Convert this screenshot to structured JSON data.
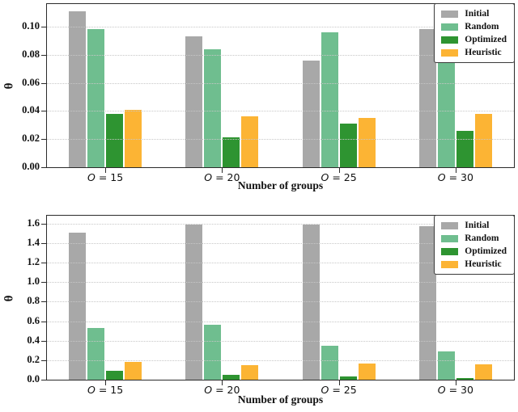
{
  "figure_colors": {
    "initial": "#a8a8a8",
    "random": "#6fbe8f",
    "optimized": "#2e9431",
    "heuristic": "#fcb434",
    "spine": "#2b2b2b",
    "gridline": "#c7c7c7"
  },
  "chart_data": [
    {
      "type": "bar",
      "title": "",
      "xlabel": "Number of groups",
      "ylabel": "θ",
      "categories": [
        "O = 15",
        "O = 20",
        "O = 25",
        "O = 30"
      ],
      "ylim": [
        0,
        0.116
      ],
      "grid": true,
      "legend_position": "upper right",
      "yticks": [
        {
          "value": 0.0,
          "label": "0.00"
        },
        {
          "value": 0.02,
          "label": "0.02"
        },
        {
          "value": 0.04,
          "label": "0.04"
        },
        {
          "value": 0.06,
          "label": "0.06"
        },
        {
          "value": 0.08,
          "label": "0.08"
        },
        {
          "value": 0.1,
          "label": "0.10"
        }
      ],
      "series": [
        {
          "name": "Initial",
          "color": "#a8a8a8",
          "values": [
            0.111,
            0.093,
            0.076,
            0.098
          ]
        },
        {
          "name": "Random",
          "color": "#6fbe8f",
          "values": [
            0.098,
            0.084,
            0.096,
            0.079
          ]
        },
        {
          "name": "Optimized",
          "color": "#2e9431",
          "values": [
            0.038,
            0.021,
            0.031,
            0.026
          ]
        },
        {
          "name": "Heuristic",
          "color": "#fcb434",
          "values": [
            0.041,
            0.036,
            0.035,
            0.038
          ]
        }
      ]
    },
    {
      "type": "bar",
      "title": "",
      "xlabel": "Number of groups",
      "ylabel": "θ",
      "categories": [
        "O = 15",
        "O = 20",
        "O = 25",
        "O = 30"
      ],
      "ylim": [
        0,
        1.68
      ],
      "grid": true,
      "legend_position": "upper right",
      "yticks": [
        {
          "value": 0.0,
          "label": "0.0"
        },
        {
          "value": 0.2,
          "label": "0.2"
        },
        {
          "value": 0.4,
          "label": "0.4"
        },
        {
          "value": 0.6,
          "label": "0.6"
        },
        {
          "value": 0.8,
          "label": "0.8"
        },
        {
          "value": 1.0,
          "label": "1.0"
        },
        {
          "value": 1.2,
          "label": "1.2"
        },
        {
          "value": 1.4,
          "label": "1.4"
        },
        {
          "value": 1.6,
          "label": "1.6"
        }
      ],
      "series": [
        {
          "name": "Initial",
          "color": "#a8a8a8",
          "values": [
            1.51,
            1.59,
            1.59,
            1.57
          ]
        },
        {
          "name": "Random",
          "color": "#6fbe8f",
          "values": [
            0.53,
            0.56,
            0.35,
            0.29
          ]
        },
        {
          "name": "Optimized",
          "color": "#2e9431",
          "values": [
            0.09,
            0.05,
            0.03,
            0.02
          ]
        },
        {
          "name": "Heuristic",
          "color": "#fcb434",
          "values": [
            0.18,
            0.15,
            0.17,
            0.16
          ]
        }
      ]
    }
  ]
}
